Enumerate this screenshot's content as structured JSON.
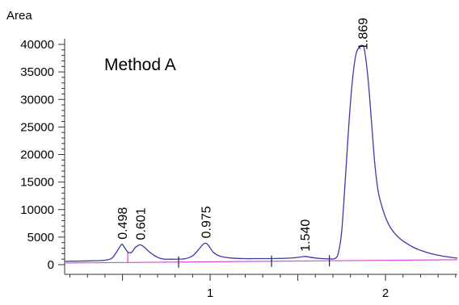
{
  "chart_data": {
    "type": "line",
    "title": "",
    "annotation": "Method A",
    "ylabel": "Area",
    "xlabel": "",
    "ylim": [
      0,
      40000
    ],
    "xlim": [
      0.17,
      2.41
    ],
    "yticks": [
      0,
      5000,
      10000,
      15000,
      20000,
      25000,
      30000,
      35000,
      40000
    ],
    "xticks_labeled": [
      1,
      2
    ],
    "colors": {
      "trace": "#3a3aa8",
      "baseline": "#d94fd9",
      "axis": "#333333",
      "marker": "#b03090"
    },
    "series": [
      {
        "x": [
          0.17,
          0.25,
          0.33,
          0.4,
          0.44,
          0.47,
          0.49,
          0.498,
          0.51,
          0.53,
          0.55,
          0.57,
          0.59,
          0.601,
          0.62,
          0.65,
          0.68,
          0.71,
          0.74,
          0.78,
          0.82,
          0.86,
          0.9,
          0.93,
          0.96,
          0.975,
          0.99,
          1.02,
          1.06,
          1.12,
          1.2,
          1.28,
          1.35,
          1.42,
          1.48,
          1.52,
          1.54,
          1.56,
          1.6,
          1.64,
          1.68,
          1.71,
          1.73,
          1.75,
          1.77,
          1.79,
          1.81,
          1.83,
          1.85,
          1.869,
          1.88,
          1.9,
          1.92,
          1.94,
          1.96,
          1.99,
          2.02,
          2.06,
          2.1,
          2.15,
          2.2,
          2.26,
          2.32,
          2.38,
          2.41
        ],
        "values": [
          600,
          650,
          700,
          800,
          1200,
          2500,
          3500,
          3700,
          3200,
          2300,
          2200,
          3000,
          3500,
          3600,
          3300,
          2400,
          1700,
          1200,
          1000,
          1000,
          1000,
          1100,
          1600,
          2600,
          3700,
          3900,
          3500,
          2200,
          1500,
          1200,
          1100,
          1100,
          1100,
          1150,
          1250,
          1400,
          1500,
          1400,
          1200,
          1100,
          1050,
          1100,
          2000,
          6000,
          15000,
          25000,
          33000,
          38000,
          39500,
          39800,
          39000,
          34000,
          26000,
          18000,
          13000,
          9500,
          7200,
          5400,
          4300,
          3300,
          2600,
          2000,
          1600,
          1300,
          1200
        ]
      }
    ],
    "peaks": [
      {
        "label": "0.498",
        "x": 0.498,
        "y": 3700
      },
      {
        "label": "0.601",
        "x": 0.601,
        "y": 3600
      },
      {
        "label": "0.975",
        "x": 0.975,
        "y": 3900
      },
      {
        "label": "1.540",
        "x": 1.54,
        "y": 1500
      },
      {
        "label": "1.869",
        "x": 1.869,
        "y": 39800
      }
    ],
    "baseline": {
      "x": [
        0.17,
        2.41
      ],
      "values": [
        300,
        900
      ]
    },
    "integration_markers": [
      {
        "x": 0.53,
        "style": "dropline"
      },
      {
        "x": 0.82,
        "style": "tick"
      },
      {
        "x": 1.35,
        "style": "tick"
      },
      {
        "x": 1.68,
        "style": "tick"
      }
    ]
  }
}
